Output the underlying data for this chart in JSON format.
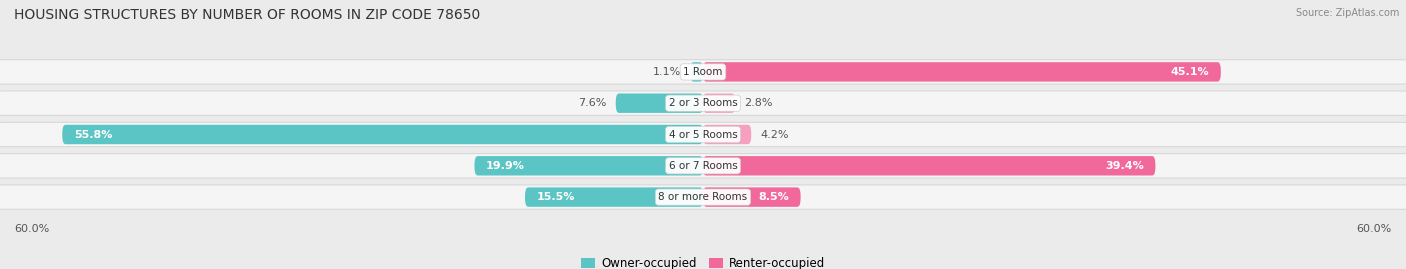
{
  "title": "HOUSING STRUCTURES BY NUMBER OF ROOMS IN ZIP CODE 78650",
  "source": "Source: ZipAtlas.com",
  "categories": [
    "1 Room",
    "2 or 3 Rooms",
    "4 or 5 Rooms",
    "6 or 7 Rooms",
    "8 or more Rooms"
  ],
  "owner_values": [
    1.1,
    7.6,
    55.8,
    19.9,
    15.5
  ],
  "renter_values": [
    45.1,
    2.8,
    4.2,
    39.4,
    8.5
  ],
  "owner_color": "#5bc4c4",
  "renter_color_large": "#f0699a",
  "renter_color_small": "#f5a0bf",
  "owner_label": "Owner-occupied",
  "renter_label": "Renter-occupied",
  "axis_limit": 60.0,
  "axis_label_left": "60.0%",
  "axis_label_right": "60.0%",
  "bg_color": "#ebebeb",
  "row_bg_color": "#f5f5f5",
  "row_border_color": "#d8d8d8",
  "title_fontsize": 10,
  "bar_height": 0.62,
  "value_fontsize": 8,
  "title_color": "#333333",
  "small_threshold": 8.0
}
